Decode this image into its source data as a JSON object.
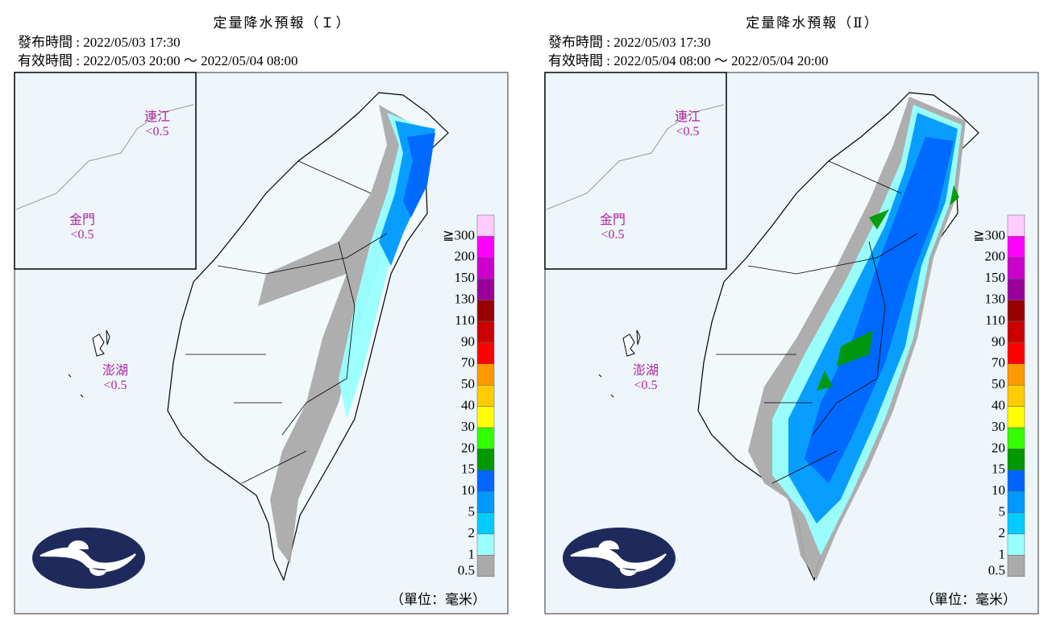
{
  "panels": [
    {
      "title": "定量降水預報（Ｉ）",
      "issued": "發布時間 : 2022/05/03 17:30",
      "valid": "有效時間 : 2022/05/03 20:00 ～ 2022/05/04 08:00",
      "islands": [
        {
          "name": "連江",
          "value": "<0.5"
        },
        {
          "name": "金門",
          "value": "<0.5"
        },
        {
          "name": "澎湖",
          "value": "<0.5"
        }
      ],
      "unit": "（單位：毫米）"
    },
    {
      "title": "定量降水預報（Ⅱ）",
      "issued": "發布時間 : 2022/05/03 17:30",
      "valid": "有效時間 : 2022/05/04 08:00 ～ 2022/05/04 20:00",
      "islands": [
        {
          "name": "連江",
          "value": "<0.5"
        },
        {
          "name": "金門",
          "value": "<0.5"
        },
        {
          "name": "澎湖",
          "value": "<0.5"
        }
      ],
      "unit": "（單位：毫米）"
    }
  ],
  "legend": [
    {
      "label": "≧300",
      "color": "#ffccff"
    },
    {
      "label": "200",
      "color": "#ff00ff"
    },
    {
      "label": "150",
      "color": "#cc00cc"
    },
    {
      "label": "130",
      "color": "#990099"
    },
    {
      "label": "110",
      "color": "#990000"
    },
    {
      "label": "90",
      "color": "#cc0000"
    },
    {
      "label": "70",
      "color": "#ff0000"
    },
    {
      "label": "50",
      "color": "#ff9900"
    },
    {
      "label": "40",
      "color": "#ffcc00"
    },
    {
      "label": "30",
      "color": "#ffff00"
    },
    {
      "label": "20",
      "color": "#33ff00"
    },
    {
      "label": "15",
      "color": "#009900"
    },
    {
      "label": "10",
      "color": "#0066ff"
    },
    {
      "label": "5",
      "color": "#0099ff"
    },
    {
      "label": "2",
      "color": "#00ccff"
    },
    {
      "label": "1",
      "color": "#99ffff"
    },
    {
      "label": "0.5",
      "color": "#aaaaaa"
    }
  ]
}
